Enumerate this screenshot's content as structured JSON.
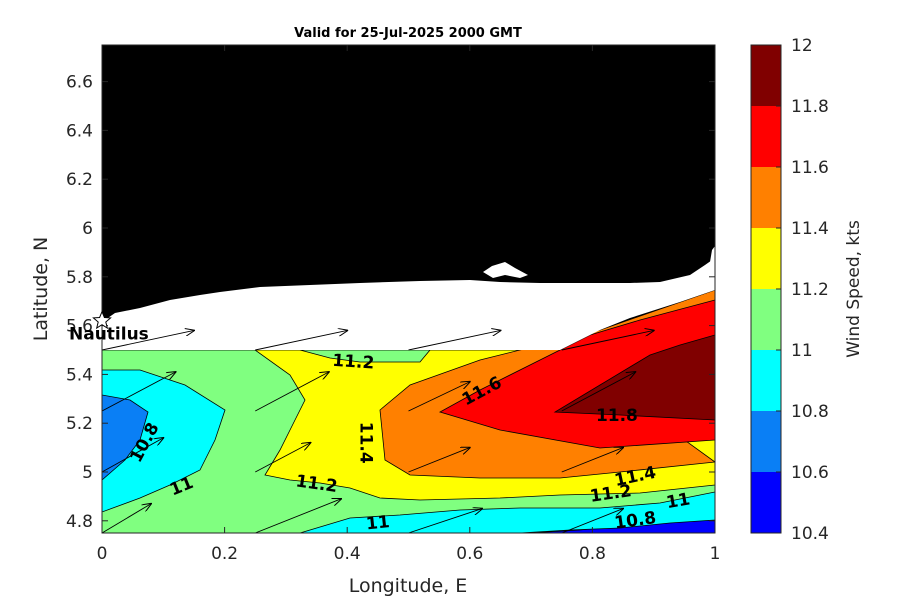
{
  "chart_data": {
    "type": "contour-map",
    "title": "Valid for 25-Jul-2025 2000 GMT",
    "xlabel": "Longitude, E",
    "ylabel": "Latitude, N",
    "xlim": [
      0,
      1
    ],
    "ylim": [
      4.75,
      6.75
    ],
    "x_ticks": [
      "0",
      "0.2",
      "0.4",
      "0.6",
      "0.8",
      "1"
    ],
    "y_ticks": [
      "4.8",
      "5",
      "5.2",
      "5.4",
      "5.6",
      "5.8",
      "6",
      "6.2",
      "6.4",
      "6.6"
    ],
    "colorbar": {
      "label": "Wind Speed, kts",
      "ticks": [
        "10.4",
        "10.6",
        "10.8",
        "11",
        "11.2",
        "11.4",
        "11.6",
        "11.8",
        "12"
      ],
      "colors": [
        "#0000ff",
        "#0a7ff5",
        "#00ffff",
        "#80ff80",
        "#ffff00",
        "#ff8000",
        "#ff0000",
        "#800000"
      ]
    },
    "contour_labels": [
      {
        "text": "11.2",
        "x": 0.41,
        "y": 5.45
      },
      {
        "text": "11.6",
        "x": 0.62,
        "y": 5.33
      },
      {
        "text": "11.4",
        "x": 0.43,
        "y": 5.12
      },
      {
        "text": "11.8",
        "x": 0.84,
        "y": 5.23
      },
      {
        "text": "10.8",
        "x": 0.07,
        "y": 5.12
      },
      {
        "text": "11",
        "x": 0.13,
        "y": 4.94
      },
      {
        "text": "11.2",
        "x": 0.35,
        "y": 4.95
      },
      {
        "text": "11.4",
        "x": 0.87,
        "y": 4.98
      },
      {
        "text": "11.2",
        "x": 0.83,
        "y": 4.91
      },
      {
        "text": "11",
        "x": 0.94,
        "y": 4.88
      },
      {
        "text": "11",
        "x": 0.45,
        "y": 4.79
      },
      {
        "text": "10.8",
        "x": 0.87,
        "y": 4.8
      }
    ],
    "station": {
      "name": "Nautilus",
      "x": 0.0,
      "y": 5.62
    },
    "wind_vectors": [
      {
        "x": 0.0,
        "y": 5.5,
        "dx": 0.15,
        "dy": 0.08
      },
      {
        "x": 0.25,
        "y": 5.5,
        "dx": 0.15,
        "dy": 0.08
      },
      {
        "x": 0.5,
        "y": 5.5,
        "dx": 0.15,
        "dy": 0.08
      },
      {
        "x": 0.75,
        "y": 5.5,
        "dx": 0.15,
        "dy": 0.08
      },
      {
        "x": 0.0,
        "y": 5.25,
        "dx": 0.12,
        "dy": 0.16
      },
      {
        "x": 0.25,
        "y": 5.25,
        "dx": 0.12,
        "dy": 0.16
      },
      {
        "x": 0.5,
        "y": 5.25,
        "dx": 0.1,
        "dy": 0.12
      },
      {
        "x": 0.75,
        "y": 5.25,
        "dx": 0.12,
        "dy": 0.16
      },
      {
        "x": 0.0,
        "y": 5.0,
        "dx": 0.1,
        "dy": 0.14
      },
      {
        "x": 0.25,
        "y": 5.0,
        "dx": 0.09,
        "dy": 0.12
      },
      {
        "x": 0.5,
        "y": 5.0,
        "dx": 0.1,
        "dy": 0.1
      },
      {
        "x": 0.75,
        "y": 5.0,
        "dx": 0.1,
        "dy": 0.1
      },
      {
        "x": 0.0,
        "y": 4.75,
        "dx": 0.08,
        "dy": 0.12
      },
      {
        "x": 0.25,
        "y": 4.75,
        "dx": 0.14,
        "dy": 0.14
      },
      {
        "x": 0.5,
        "y": 4.75,
        "dx": 0.12,
        "dy": 0.1
      },
      {
        "x": 0.75,
        "y": 4.75,
        "dx": 0.1,
        "dy": 0.1
      }
    ]
  }
}
